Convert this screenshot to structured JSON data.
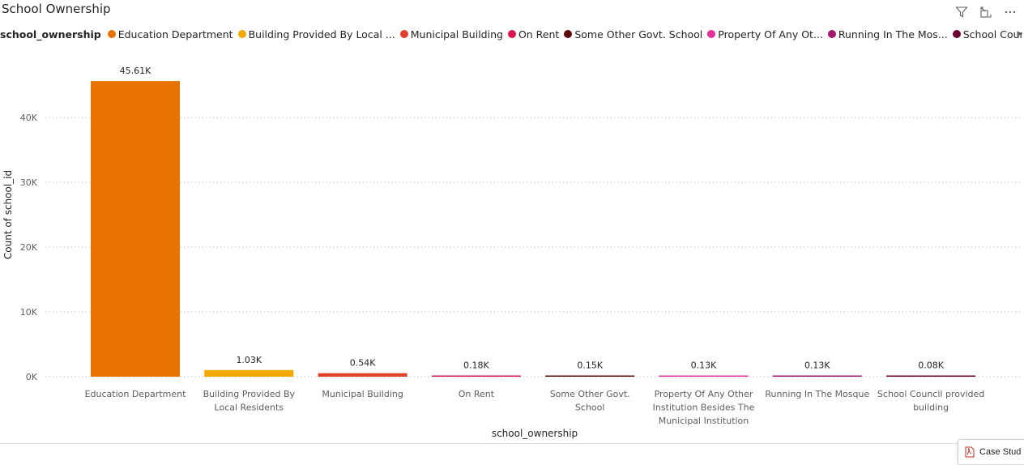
{
  "visual": {
    "title": "School Ownership"
  },
  "legend": {
    "title": "school_ownership",
    "items": [
      {
        "label": "Education Department",
        "color": "#E87300"
      },
      {
        "label": "Building Provided By Local ...",
        "color": "#F2A900"
      },
      {
        "label": "Municipal Building",
        "color": "#E0402A"
      },
      {
        "label": "On Rent",
        "color": "#D9174E"
      },
      {
        "label": "Some Other Govt. School",
        "color": "#5C0A0A"
      },
      {
        "label": "Property Of Any Ot...",
        "color": "#E6319C"
      },
      {
        "label": "Running In The Mos...",
        "color": "#A3186E"
      },
      {
        "label": "School Council ...",
        "color": "#6D0030"
      }
    ]
  },
  "taskbar": {
    "case_tab_label": "Case Stud"
  },
  "chart_data": {
    "type": "bar",
    "title": "School Ownership",
    "xlabel": "school_ownership",
    "ylabel": "Count of school_id",
    "ylim": [
      0,
      50000
    ],
    "yticks": [
      0,
      10000,
      20000,
      30000,
      40000
    ],
    "ytick_labels": [
      "0K",
      "10K",
      "20K",
      "30K",
      "40K"
    ],
    "grid": true,
    "legend_position": "top-left",
    "categories": [
      "Education Department",
      "Building Provided By Local Residents",
      "Municipal Building",
      "On Rent",
      "Some Other Govt. School",
      "Property Of Any Other Institution Besides The Municipal Institution",
      "Running In The Mosque",
      "School Council provided building"
    ],
    "category_lines": [
      [
        "Education Department"
      ],
      [
        "Building Provided By",
        "Local Residents"
      ],
      [
        "Municipal Building"
      ],
      [
        "On Rent"
      ],
      [
        "Some Other Govt.",
        "School"
      ],
      [
        "Property Of Any Other",
        "Institution Besides The",
        "Municipal Institution"
      ],
      [
        "Running In The Mosque"
      ],
      [
        "School Council provided",
        "building"
      ]
    ],
    "values": [
      45610,
      1030,
      540,
      180,
      150,
      130,
      130,
      80
    ],
    "data_labels": [
      "45.61K",
      "1.03K",
      "0.54K",
      "0.18K",
      "0.15K",
      "0.13K",
      "0.13K",
      "0.08K"
    ],
    "colors": [
      "#E87300",
      "#F2A900",
      "#E0402A",
      "#D9174E",
      "#5C0A0A",
      "#E6319C",
      "#A3186E",
      "#6D0030"
    ]
  }
}
